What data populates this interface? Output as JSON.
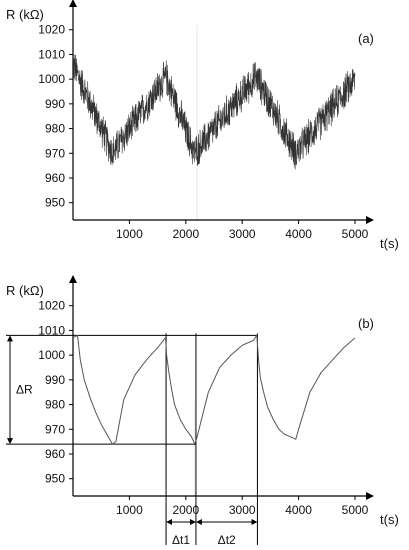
{
  "chart_data": [
    {
      "panel": "(a)",
      "type": "line",
      "ylabel": "R (kΩ)",
      "xlabel": "t(s)",
      "xlim": [
        0,
        5000
      ],
      "ylim": [
        943,
        1030
      ],
      "xticks": [
        1000,
        2000,
        3000,
        4000,
        5000
      ],
      "yticks": [
        950,
        960,
        970,
        980,
        990,
        1000,
        1010,
        1020
      ],
      "noisy": true,
      "noise_amplitude": 8,
      "series": [
        {
          "x": [
            0,
            700,
            1650,
            2150,
            3250,
            3950,
            5000
          ],
          "y": [
            1006,
            970,
            1001,
            970,
            1001,
            970,
            1000
          ]
        }
      ]
    },
    {
      "panel": "(b)",
      "type": "line",
      "ylabel": "R  (kΩ)",
      "xlabel": "t(s)",
      "xlim": [
        0,
        5000
      ],
      "ylim": [
        943,
        1030
      ],
      "xticks": [
        1000,
        2000,
        3000,
        4000,
        5000
      ],
      "yticks": [
        950,
        960,
        970,
        980,
        990,
        1000,
        1010,
        1020
      ],
      "series": [
        {
          "x": [
            0,
            80,
            130,
            200,
            300,
            400,
            500,
            600,
            700,
            760,
            900,
            1100,
            1300,
            1500,
            1640,
            1660,
            1700,
            1750,
            1800,
            1900,
            2000,
            2100,
            2160,
            2190,
            2400,
            2600,
            2800,
            3000,
            3200,
            3260,
            3290,
            3320,
            3380,
            3450,
            3550,
            3650,
            3750,
            3850,
            3950,
            4000,
            4200,
            4400,
            4600,
            4800,
            5000
          ],
          "y": [
            1007,
            1008,
            998,
            990,
            983,
            977,
            972,
            968,
            964,
            965,
            982,
            992,
            998,
            1003,
            1007,
            1000,
            993,
            986,
            980,
            974,
            970,
            967,
            964,
            966,
            985,
            995,
            1000,
            1004,
            1006,
            1008,
            998,
            991,
            985,
            979,
            974,
            970,
            968,
            967,
            966,
            970,
            985,
            993,
            998,
            1003,
            1007
          ]
        }
      ],
      "annotations": {
        "delta_r_label": "ΔR",
        "delta_r_range": [
          964,
          1008
        ],
        "delta_t1_label": "Δt1",
        "delta_t1_range": [
          1650,
          2180
        ],
        "delta_t2_label": "Δt2",
        "delta_t2_range": [
          2180,
          3270
        ],
        "horizontal_lines": [
          1008,
          964
        ],
        "vertical_lines": [
          1650,
          2180,
          3270
        ]
      }
    }
  ]
}
